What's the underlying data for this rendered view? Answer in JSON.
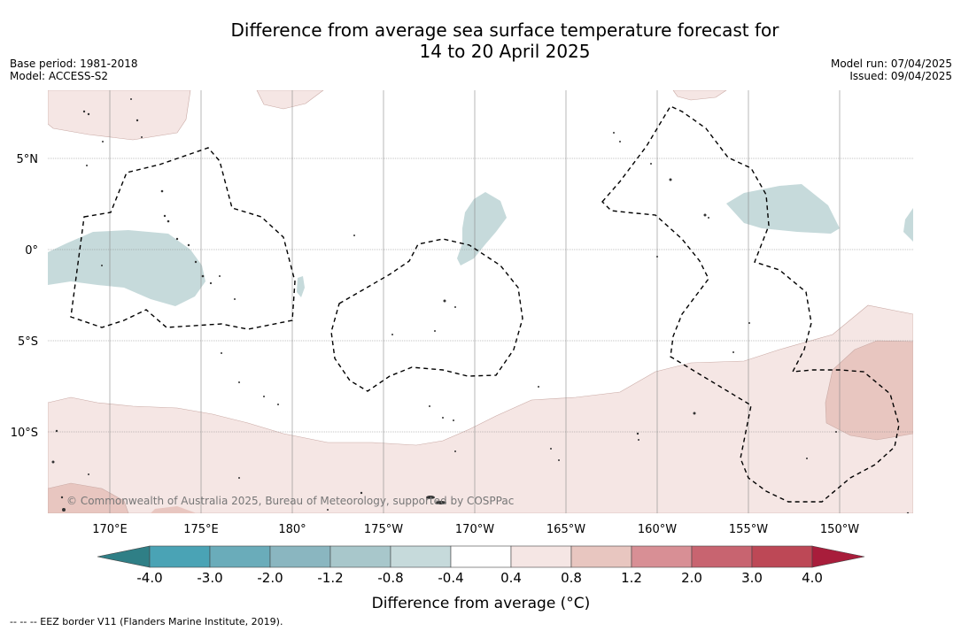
{
  "title_line1": "Difference from average sea surface temperature forecast for",
  "title_line2": "14 to 20 April 2025",
  "base_period": "Base period: 1981-2018",
  "model": "Model: ACCESS-S2",
  "model_run": "Model run: 07/04/2025",
  "issued": "Issued: 09/04/2025",
  "copyright": "© Commonwealth of Australia 2025, Bureau of Meteorology, supported by COSPPac",
  "lat_labels": [
    "5°N",
    "0°",
    "5°S",
    "10°S"
  ],
  "lon_labels": [
    "170°E",
    "175°E",
    "180°",
    "175°W",
    "170°W",
    "165°W",
    "160°W",
    "155°W",
    "150°W"
  ],
  "colorbar": {
    "ticks": [
      "-4.0",
      "-3.0",
      "-2.0",
      "-1.2",
      "-0.8",
      "-0.4",
      "0.4",
      "0.8",
      "1.2",
      "2.0",
      "3.0",
      "4.0"
    ],
    "label": "Difference from average (°C)",
    "colors": [
      "#2f7f86",
      "#4aa3b5",
      "#6aacba",
      "#8ab6c0",
      "#a8c7cb",
      "#c6dadb",
      "#ffffff",
      "#f5e6e4",
      "#e8c6c0",
      "#d88f95",
      "#c86470",
      "#bd4856",
      "#a81d3b"
    ]
  },
  "footer": "--  --  -- EEZ border V11 (Flanders Marine Institute, 2019)."
}
